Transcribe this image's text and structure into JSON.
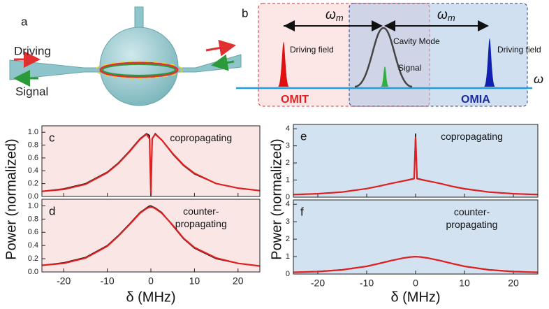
{
  "panel_a": {
    "label": "a",
    "driving": "Driving",
    "signal": "Signal"
  },
  "panel_b": {
    "label": "b",
    "omega_m_left": {
      "symbol": "ω",
      "subscript": "m"
    },
    "omega_m_right": {
      "symbol": "ω",
      "subscript": "m"
    },
    "driving_field_left": "Driving field",
    "cavity_mode": "Cavity Mode",
    "signal": "Signal",
    "driving_field_right": "Driving field",
    "omit": "OMIT",
    "omia": "OMIA",
    "omega": "ω"
  },
  "left_axes": {
    "y_label": "Power (normalized)",
    "x_label": "δ (MHz)"
  },
  "right_axes": {
    "y_label": "Power (normalized)",
    "x_label": "δ (MHz)"
  },
  "chart_data": [
    {
      "type": "line",
      "panel": "c",
      "annotation": [
        "copropagating"
      ],
      "background": "#fbe6e6",
      "xlim": [
        -25,
        25
      ],
      "xticks": [
        -20,
        -10,
        0,
        10,
        20
      ],
      "ylim": [
        0,
        1.1
      ],
      "yticks": [
        {
          "value": 0,
          "label": "0.0"
        },
        0.2,
        0.4,
        0.6,
        0.8,
        {
          "value": 1,
          "label": "1.0"
        }
      ],
      "x": [
        -25,
        -20,
        -15,
        -10,
        -7.5,
        -5,
        -2.5,
        -1,
        -0.3,
        0,
        0.3,
        1,
        2.5,
        5,
        7.5,
        10,
        15,
        20,
        25
      ],
      "series": [
        {
          "color": "#111111",
          "values": [
            0.08,
            0.12,
            0.2,
            0.38,
            0.52,
            0.7,
            0.9,
            0.98,
            0.95,
            0.02,
            0.9,
            0.98,
            0.88,
            0.66,
            0.48,
            0.35,
            0.2,
            0.13,
            0.09
          ]
        },
        {
          "color": "#e02020",
          "values": [
            0.08,
            0.11,
            0.19,
            0.37,
            0.51,
            0.69,
            0.89,
            0.97,
            0.9,
            0.05,
            0.9,
            0.97,
            0.88,
            0.67,
            0.49,
            0.36,
            0.2,
            0.13,
            0.09
          ]
        }
      ]
    },
    {
      "type": "line",
      "panel": "d",
      "annotation": [
        "counter-",
        "propagating"
      ],
      "background": "#fbe6e6",
      "xlim": [
        -25,
        25
      ],
      "xticks": [
        -20,
        -10,
        0,
        10,
        20
      ],
      "ylim": [
        0,
        1.1
      ],
      "yticks": [
        {
          "value": 0,
          "label": "0.0"
        },
        0.2,
        0.4,
        0.6,
        0.8,
        {
          "value": 1,
          "label": "1.0"
        }
      ],
      "x": [
        -25,
        -20,
        -15,
        -10,
        -7.5,
        -5,
        -2.5,
        -1,
        -0.3,
        0,
        0.3,
        1,
        2.5,
        5,
        7.5,
        10,
        15,
        20,
        25
      ],
      "series": [
        {
          "color": "#111111",
          "values": [
            0.1,
            0.14,
            0.22,
            0.4,
            0.55,
            0.72,
            0.9,
            0.97,
            1.0,
            1.0,
            0.99,
            0.97,
            0.9,
            0.7,
            0.5,
            0.36,
            0.2,
            0.13,
            0.09
          ]
        },
        {
          "color": "#e02020",
          "values": [
            0.1,
            0.13,
            0.21,
            0.39,
            0.54,
            0.71,
            0.89,
            0.96,
            0.98,
            0.98,
            0.98,
            0.96,
            0.89,
            0.71,
            0.51,
            0.37,
            0.21,
            0.13,
            0.09
          ]
        }
      ]
    },
    {
      "type": "line",
      "panel": "e",
      "annotation": [
        "copropagating"
      ],
      "background": "#d3e2f1",
      "xlim": [
        -25,
        25
      ],
      "xticks": [
        -20,
        -10,
        0,
        10,
        20
      ],
      "ylim": [
        0,
        4.25
      ],
      "yticks": [
        0,
        1,
        2,
        3,
        4
      ],
      "x": [
        -25,
        -20,
        -15,
        -10,
        -7.5,
        -5,
        -2.5,
        -1,
        -0.3,
        0,
        0.3,
        1,
        2.5,
        5,
        7.5,
        10,
        15,
        20,
        25
      ],
      "series": [
        {
          "color": "#111111",
          "values": [
            0.15,
            0.2,
            0.3,
            0.5,
            0.65,
            0.8,
            0.95,
            1.05,
            1.1,
            3.7,
            1.1,
            1.05,
            0.95,
            0.8,
            0.62,
            0.48,
            0.3,
            0.2,
            0.15
          ]
        },
        {
          "color": "#e02020",
          "values": [
            0.15,
            0.2,
            0.3,
            0.5,
            0.64,
            0.8,
            0.95,
            1.03,
            1.08,
            3.5,
            1.08,
            1.03,
            0.95,
            0.8,
            0.63,
            0.49,
            0.3,
            0.2,
            0.15
          ]
        }
      ]
    },
    {
      "type": "line",
      "panel": "f",
      "annotation": [
        "counter-",
        "propagating"
      ],
      "background": "#d3e2f1",
      "xlim": [
        -25,
        25
      ],
      "xticks": [
        -20,
        -10,
        0,
        10,
        20
      ],
      "ylim": [
        0,
        4.25
      ],
      "yticks": [
        0,
        1,
        2,
        3,
        4
      ],
      "x": [
        -25,
        -20,
        -15,
        -10,
        -7.5,
        -5,
        -2.5,
        -1,
        -0.3,
        0,
        0.3,
        1,
        2.5,
        5,
        7.5,
        10,
        15,
        20,
        25
      ],
      "series": [
        {
          "color": "#111111",
          "values": [
            0.1,
            0.15,
            0.25,
            0.45,
            0.6,
            0.78,
            0.92,
            0.98,
            1.0,
            1.0,
            1.0,
            0.98,
            0.92,
            0.78,
            0.6,
            0.45,
            0.25,
            0.15,
            0.1
          ]
        },
        {
          "color": "#e02020",
          "values": [
            0.1,
            0.14,
            0.24,
            0.44,
            0.6,
            0.77,
            0.92,
            0.98,
            0.99,
            0.99,
            0.99,
            0.98,
            0.92,
            0.77,
            0.6,
            0.44,
            0.24,
            0.14,
            0.1
          ]
        }
      ]
    }
  ]
}
